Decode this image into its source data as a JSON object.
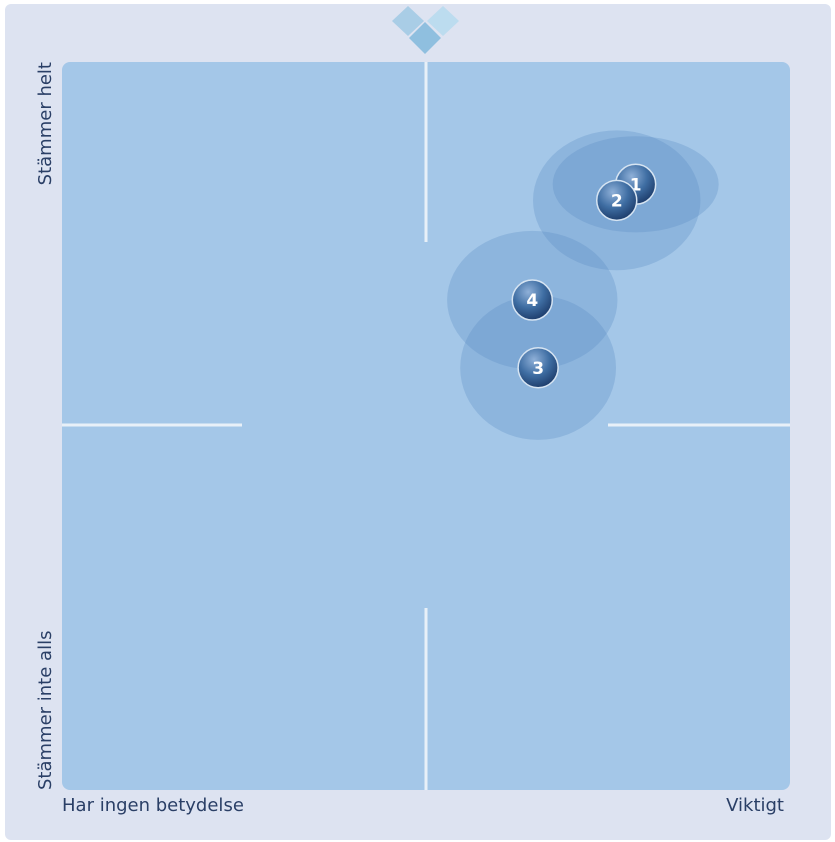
{
  "chart_data": {
    "type": "scatter",
    "labels": [
      "1",
      "2",
      "3",
      "4"
    ],
    "x": [
      78.8,
      76.2,
      65.4,
      64.6
    ],
    "values": [
      83.2,
      81.0,
      58.0,
      67.3
    ],
    "xerr": [
      11.4,
      11.5,
      10.7,
      11.7
    ],
    "yerr": [
      6.6,
      9.6,
      9.9,
      9.5
    ],
    "color": "#3f6ea3",
    "xlim": [
      0,
      100
    ],
    "ylim": [
      0,
      100
    ],
    "xticks": [
      {
        "value": 0,
        "label": "Har ingen betydelse"
      },
      {
        "value": 100,
        "label": "Viktigt"
      }
    ],
    "yticks": [
      {
        "value": 0,
        "label": "Stämmer inte alls"
      },
      {
        "value": 100,
        "label": "Stämmer helt"
      }
    ]
  }
}
